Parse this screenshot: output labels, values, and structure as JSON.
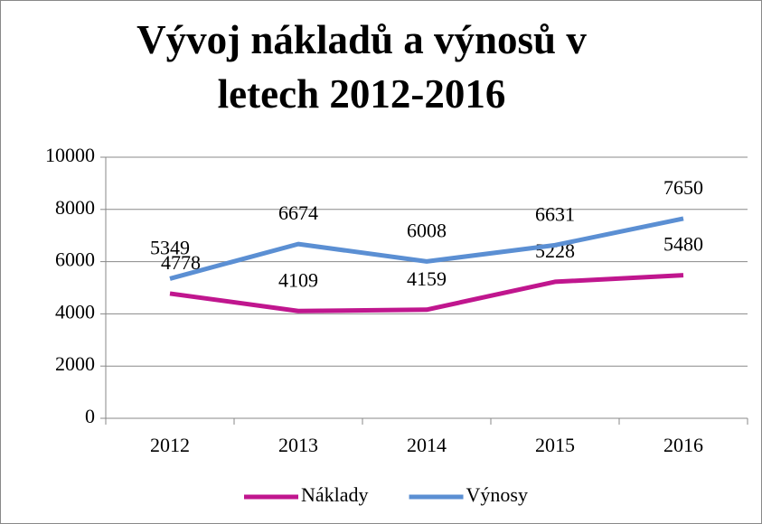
{
  "chart_data": {
    "type": "line",
    "title": "Vývoj nákladů a výnosů v letech 2012-2016",
    "categories": [
      "2012",
      "2013",
      "2014",
      "2015",
      "2016"
    ],
    "series": [
      {
        "name": "Náklady",
        "color": "#c0168e",
        "values": [
          4778,
          4109,
          4159,
          5228,
          5480
        ]
      },
      {
        "name": "Výnosy",
        "color": "#5b8fd3",
        "values": [
          5349,
          6674,
          6008,
          6631,
          7650
        ]
      }
    ],
    "ylim": [
      0,
      10000
    ],
    "yticks": [
      0,
      2000,
      4000,
      6000,
      8000,
      10000
    ],
    "grid": true,
    "legend": "bottom"
  }
}
